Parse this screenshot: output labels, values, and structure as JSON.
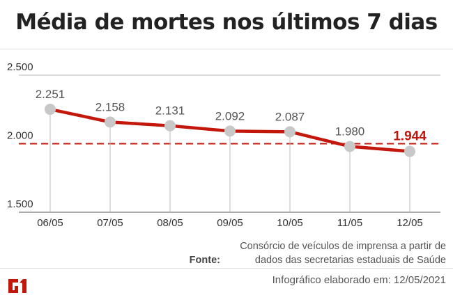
{
  "title": "Média de mortes nos últimos 7 dias",
  "source_label": "Fonte:",
  "source_text": "Consórcio de veículos de imprensa a partir de dados das secretarias estaduais de Saúde",
  "credit": "Infográfico elaborado em: 12/05/2021",
  "logo": "G1",
  "colors": {
    "line": "#c4170c",
    "point": "#c8c8c8",
    "highlight": "#c4170c"
  },
  "chart_data": {
    "type": "line",
    "categories": [
      "06/05",
      "07/05",
      "08/05",
      "09/05",
      "10/05",
      "11/05",
      "12/05"
    ],
    "values": [
      2251,
      2158,
      2131,
      2092,
      2087,
      1980,
      1944
    ],
    "data_labels": [
      "2.251",
      "2.158",
      "2.131",
      "2.092",
      "2.087",
      "1.980",
      "1.944"
    ],
    "ylim": [
      1500,
      2500
    ],
    "yticks": [
      {
        "value": 2500,
        "label": "2.500"
      },
      {
        "value": 2000,
        "label": "2.000"
      },
      {
        "value": 1500,
        "label": "1.500"
      }
    ],
    "reference_line": {
      "value": 2000,
      "style": "dashed"
    },
    "highlight_last": true,
    "grid": true
  }
}
